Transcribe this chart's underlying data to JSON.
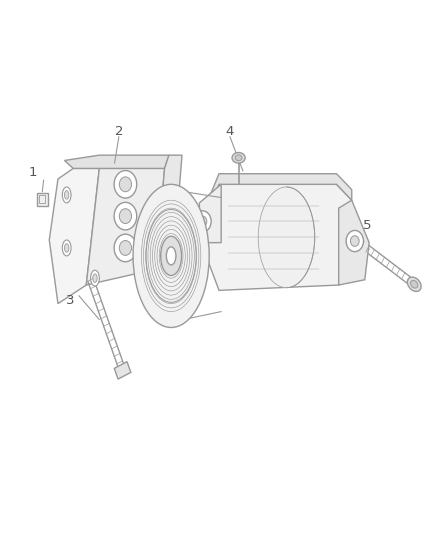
{
  "background_color": "#ffffff",
  "line_color": "#aaaaaa",
  "line_color_dark": "#999999",
  "text_color": "#555555",
  "figsize": [
    4.38,
    5.33
  ],
  "dpi": 100
}
